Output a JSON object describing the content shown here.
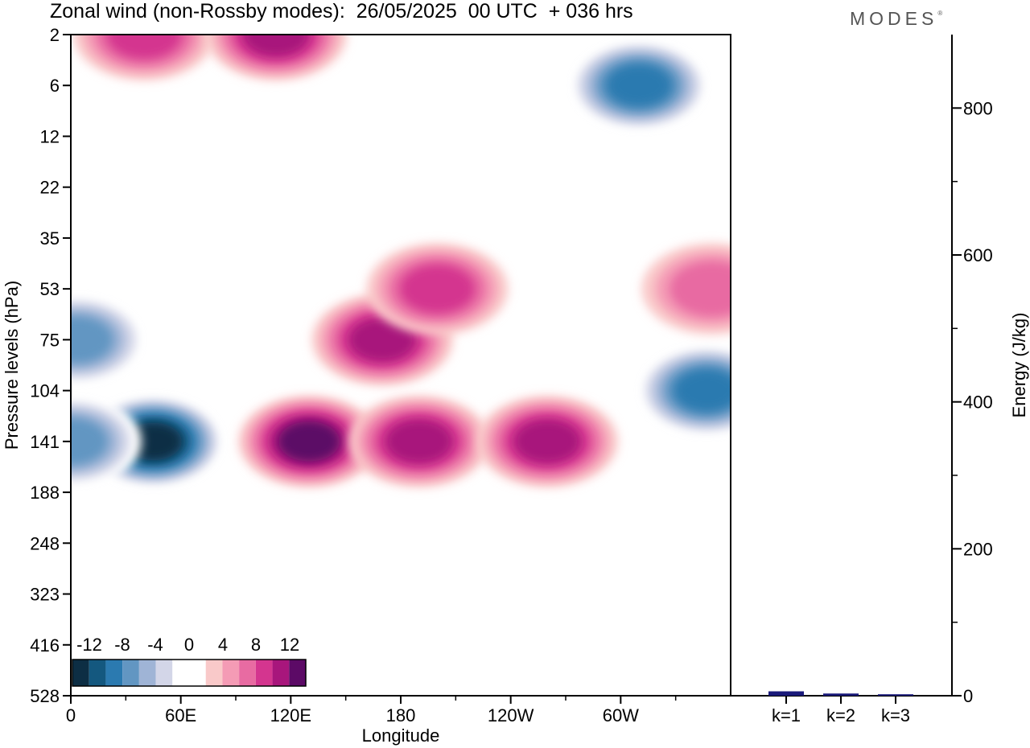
{
  "title": "Zonal wind (non-Rossby modes):  26/05/2025  00 UTC  + 036 hrs",
  "logo": "MODES",
  "logo_mark": "®",
  "chart_data": [
    {
      "type": "heatmap",
      "xlabel": "Longitude",
      "ylabel": "Pressure levels (hPa)",
      "x_ticks": [
        "0",
        "60E",
        "120E",
        "180",
        "120W",
        "60W"
      ],
      "y_ticks": [
        "2",
        "6",
        "12",
        "22",
        "35",
        "53",
        "75",
        "104",
        "141",
        "188",
        "248",
        "323",
        "416",
        "528"
      ],
      "colorbar": {
        "labels": [
          "-12",
          "-8",
          "-4",
          "0",
          "4",
          "8",
          "12"
        ],
        "colors": [
          "#0d2e44",
          "#14587f",
          "#2b7ab0",
          "#6296c2",
          "#9fb4d6",
          "#d3d6e8",
          "#ffffff",
          "#ffffff",
          "#f9c9c9",
          "#f49bb5",
          "#e86ba2",
          "#d4358f",
          "#a8167c",
          "#5c0a66"
        ]
      },
      "features": [
        {
          "lon": 45,
          "level": 141,
          "value": -14
        },
        {
          "lon": 0,
          "level": 141,
          "value": -8
        },
        {
          "lon": 3,
          "level": 75,
          "value": -8
        },
        {
          "lon": 310,
          "level": 6,
          "value": -10
        },
        {
          "lon": 347,
          "level": 104,
          "value": -9
        },
        {
          "lon": 130,
          "level": 141,
          "value": 11
        },
        {
          "lon": 170,
          "level": 75,
          "value": 10
        },
        {
          "lon": 190,
          "level": 141,
          "value": 10
        },
        {
          "lon": 260,
          "level": 141,
          "value": 9
        },
        {
          "lon": 40,
          "level": 2,
          "value": 8
        },
        {
          "lon": 112,
          "level": 2,
          "value": 10
        },
        {
          "lon": 350,
          "level": 53,
          "value": 6
        },
        {
          "lon": 200,
          "level": 53,
          "value": 7
        }
      ]
    },
    {
      "type": "bar",
      "categories": [
        "k=1",
        "k=2",
        "k=3"
      ],
      "values": [
        6,
        3,
        2
      ],
      "ylabel": "Energy (J/kg)",
      "ylim": [
        0,
        900
      ],
      "y_ticks": [
        0,
        200,
        400,
        600,
        800
      ],
      "bar_color": "#1a1a7a"
    }
  ]
}
